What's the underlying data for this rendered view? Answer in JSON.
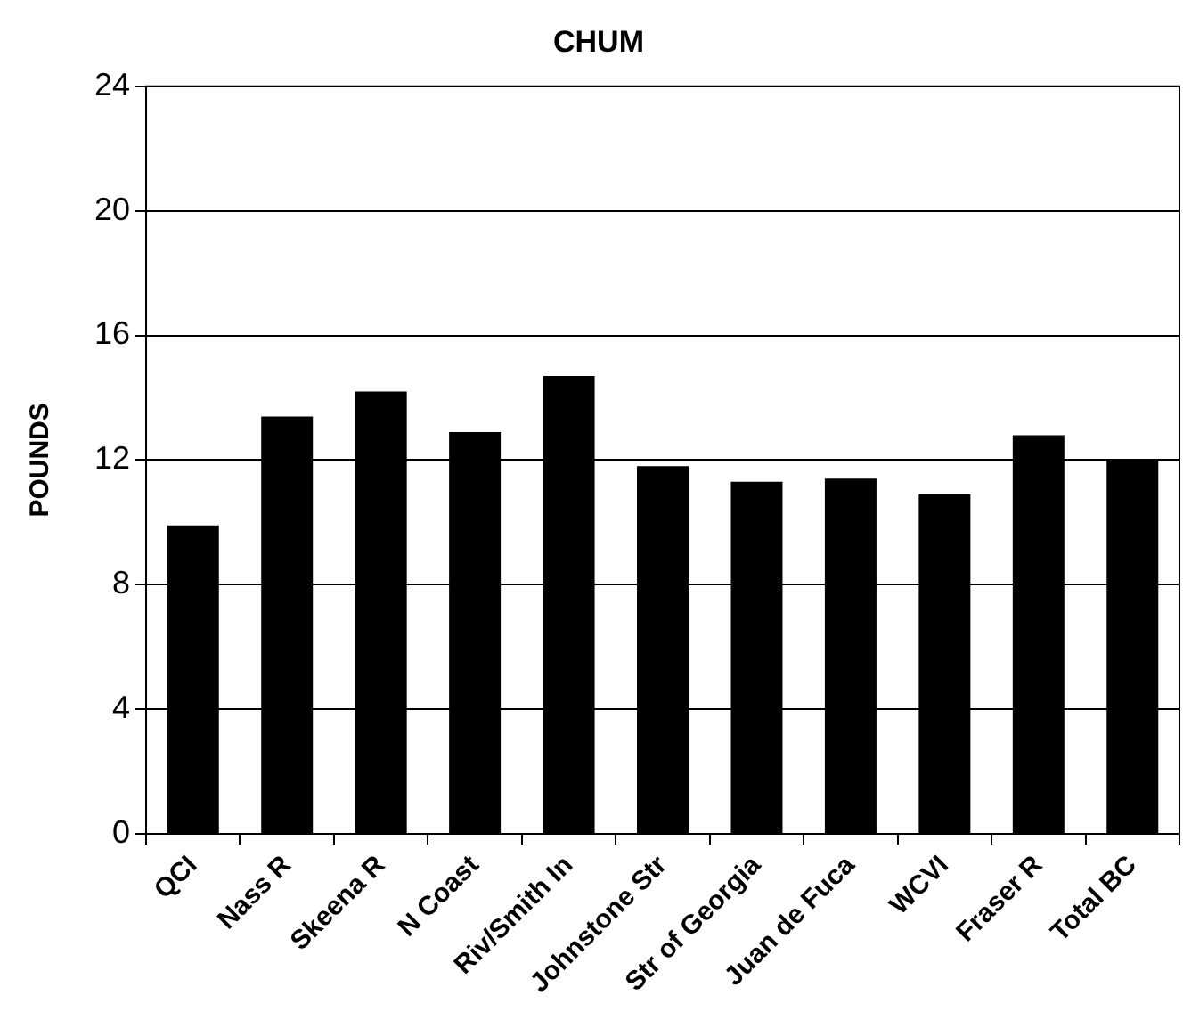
{
  "chart_data": {
    "type": "bar",
    "title": "CHUM",
    "ylabel": "POUNDS",
    "categories": [
      "QCI",
      "Nass R",
      "Skeena R",
      "N Coast",
      "Riv/Smith In",
      "Johnstone Str",
      "Str of Georgia",
      "Juan de Fuca",
      "WCVI",
      "Fraser R",
      "Total BC"
    ],
    "values": [
      9.9,
      13.4,
      14.2,
      12.9,
      14.7,
      11.8,
      11.3,
      11.4,
      10.9,
      12.8,
      12.0
    ],
    "color": "#000000",
    "ylim": [
      0,
      24
    ],
    "yticks": [
      0,
      4,
      8,
      12,
      16,
      20,
      24
    ],
    "grid": "y",
    "legend": false
  }
}
